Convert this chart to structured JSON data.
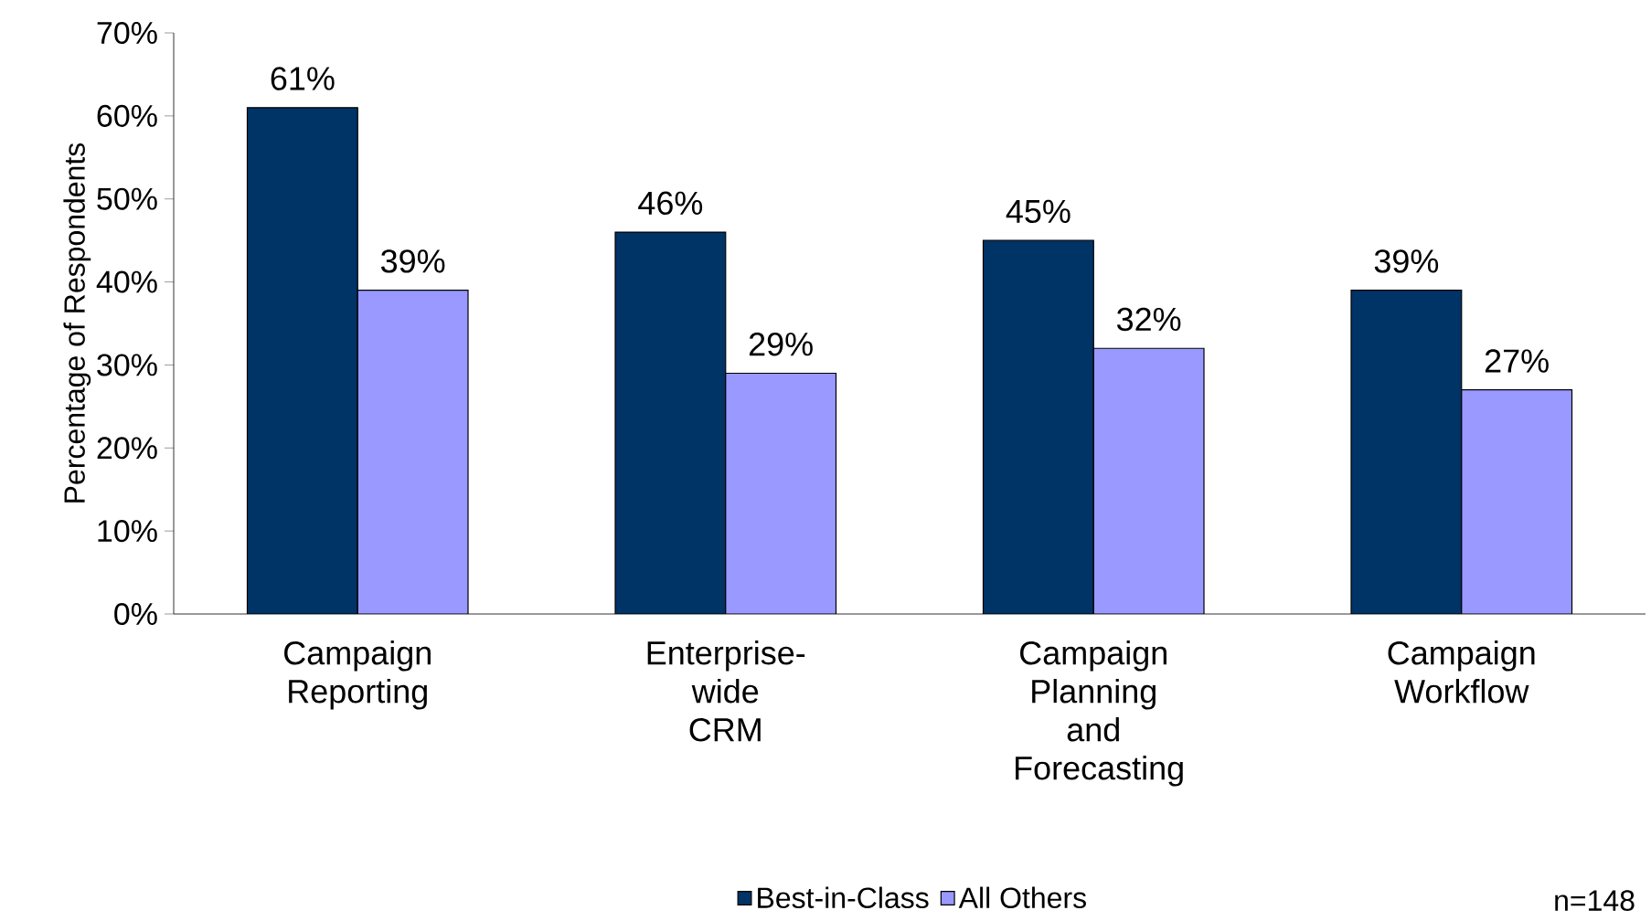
{
  "chart_data": {
    "type": "bar",
    "ylabel": "Percentage of Respondents",
    "categories": [
      "Campaign Reporting",
      "Enterprise-wide CRM",
      "Campaign Planning and Forecasting",
      "Campaign Workflow"
    ],
    "series": [
      {
        "name": "Best-in-Class",
        "color": "#003366",
        "values": [
          61,
          46,
          45,
          39
        ],
        "value_labels": [
          "61%",
          "46%",
          "45%",
          "39%"
        ]
      },
      {
        "name": "All Others",
        "color": "#9999ff",
        "values": [
          39,
          29,
          32,
          27
        ],
        "value_labels": [
          "39%",
          "29%",
          "32%",
          "27%"
        ]
      }
    ],
    "ylim": [
      0,
      70
    ],
    "yticks": [
      {
        "value": 0,
        "label": "0%"
      },
      {
        "value": 10,
        "label": "10%"
      },
      {
        "value": 20,
        "label": "20%"
      },
      {
        "value": 30,
        "label": "30%"
      },
      {
        "value": 40,
        "label": "40%"
      },
      {
        "value": 50,
        "label": "50%"
      },
      {
        "value": 60,
        "label": "60%"
      },
      {
        "value": 70,
        "label": "70%"
      }
    ],
    "legend": "bottom",
    "annotations": [
      "n=148"
    ]
  }
}
